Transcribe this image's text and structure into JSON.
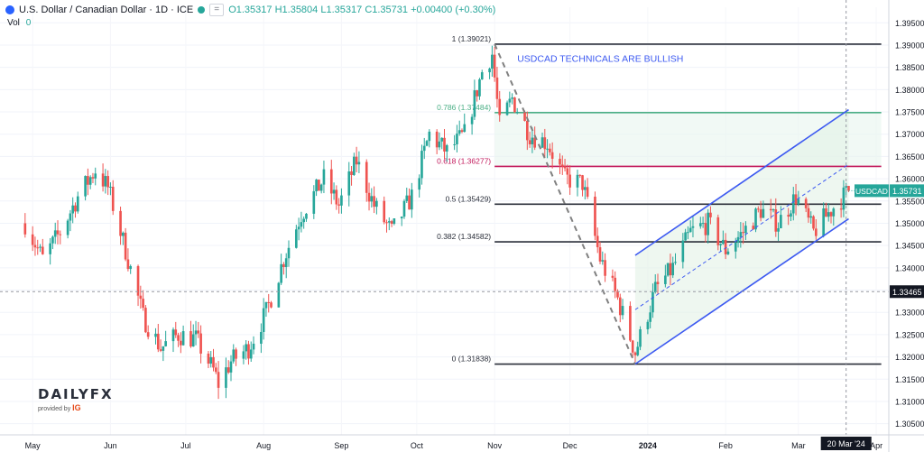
{
  "header": {
    "symbol_title": "U.S. Dollar / Canadian Dollar · 1D · ICE",
    "open": "O1.35317",
    "high": "H1.35804",
    "low": "L1.35317",
    "close": "C1.35731",
    "change": "+0.00400 (+0.30%)",
    "vol_label": "Vol",
    "vol_value": "0"
  },
  "logo": {
    "brand": "DAILYFX",
    "sub": "provided by",
    "ig": "IG"
  },
  "colors": {
    "up": "#26a69a",
    "down": "#ef5350",
    "channel": "#3d5af1",
    "fib_786": "#4caf86",
    "fib_618": "#c2185b",
    "fib_neutral": "#2a2e39",
    "annotation": "#3d5af1",
    "last_price_bg": "#26a69a",
    "crosshair_bg": "#131722"
  },
  "chart_data": {
    "type": "candlestick",
    "title": "",
    "annotation": "USDCAD TECHNICALS ARE BULLISH",
    "ylim": [
      1.3025,
      1.3985
    ],
    "y_ticks": [
      "1.39500",
      "1.39000",
      "1.38500",
      "1.38000",
      "1.37500",
      "1.37000",
      "1.36500",
      "1.36000",
      "1.35500",
      "1.35000",
      "1.34500",
      "1.34000",
      "1.33500",
      "1.33000",
      "1.32500",
      "1.32000",
      "1.31500",
      "1.31000",
      "1.30500"
    ],
    "x_ticks": [
      {
        "label": "May",
        "date": "2023-05-01"
      },
      {
        "label": "Jun",
        "date": "2023-06-01"
      },
      {
        "label": "Jul",
        "date": "2023-07-01"
      },
      {
        "label": "Aug",
        "date": "2023-08-01"
      },
      {
        "label": "Sep",
        "date": "2023-09-01"
      },
      {
        "label": "Oct",
        "date": "2023-10-01"
      },
      {
        "label": "Nov",
        "date": "2023-11-01"
      },
      {
        "label": "Dec",
        "date": "2023-12-01"
      },
      {
        "label": "2024",
        "date": "2024-01-01"
      },
      {
        "label": "Feb",
        "date": "2024-02-01"
      },
      {
        "label": "Mar",
        "date": "2024-03-01"
      },
      {
        "label": "Apr",
        "date": "2024-04-01"
      }
    ],
    "crosshair_date": "20 Mar '24",
    "crosshair_price": "1.33465",
    "last_price": {
      "symbol": "USDCAD",
      "value": "1.35731"
    },
    "fib_levels": [
      {
        "label": "1 (1.39021)",
        "value": 1.39021
      },
      {
        "label": "0.786 (1.37484)",
        "value": 1.37484
      },
      {
        "label": "0.618 (1.36277)",
        "value": 1.36277
      },
      {
        "label": "0.5 (1.35429)",
        "value": 1.35429
      },
      {
        "label": "0.382 (1.34582)",
        "value": 1.34582
      },
      {
        "label": "0 (1.31838)",
        "value": 1.31838
      }
    ],
    "trend_line": {
      "from": {
        "date": "2023-11-01",
        "value": 1.39021
      },
      "to": {
        "date": "2023-12-27",
        "value": 1.31838
      }
    },
    "channel": {
      "upper": {
        "from": {
          "date": "2023-12-27",
          "value": 1.3428
        },
        "to": {
          "date": "2024-03-21",
          "value": 1.3755
        }
      },
      "lower": {
        "from": {
          "date": "2023-12-27",
          "value": 1.3184
        },
        "to": {
          "date": "2024-03-21",
          "value": 1.351
        }
      }
    },
    "anchors": [
      [
        "2023-04-28",
        1.35
      ],
      [
        "2023-05-05",
        1.342
      ],
      [
        "2023-05-12",
        1.348
      ],
      [
        "2023-05-19",
        1.356
      ],
      [
        "2023-05-26",
        1.362
      ],
      [
        "2023-05-31",
        1.358
      ],
      [
        "2023-06-07",
        1.344
      ],
      [
        "2023-06-14",
        1.329
      ],
      [
        "2023-06-21",
        1.322
      ],
      [
        "2023-06-28",
        1.325
      ],
      [
        "2023-07-05",
        1.324
      ],
      [
        "2023-07-12",
        1.317
      ],
      [
        "2023-07-14",
        1.314
      ],
      [
        "2023-07-19",
        1.319
      ],
      [
        "2023-07-26",
        1.322
      ],
      [
        "2023-08-02",
        1.33
      ],
      [
        "2023-08-09",
        1.342
      ],
      [
        "2023-08-16",
        1.352
      ],
      [
        "2023-08-25",
        1.36
      ],
      [
        "2023-08-31",
        1.354
      ],
      [
        "2023-09-07",
        1.364
      ],
      [
        "2023-09-14",
        1.354
      ],
      [
        "2023-09-21",
        1.348
      ],
      [
        "2023-09-29",
        1.356
      ],
      [
        "2023-10-06",
        1.37
      ],
      [
        "2023-10-13",
        1.366
      ],
      [
        "2023-10-20",
        1.37
      ],
      [
        "2023-10-27",
        1.384
      ],
      [
        "2023-10-31",
        1.388
      ],
      [
        "2023-11-03",
        1.372
      ],
      [
        "2023-11-08",
        1.378
      ],
      [
        "2023-11-15",
        1.37
      ],
      [
        "2023-11-22",
        1.368
      ],
      [
        "2023-11-29",
        1.36
      ],
      [
        "2023-12-06",
        1.359
      ],
      [
        "2023-12-13",
        1.342
      ],
      [
        "2023-12-20",
        1.333
      ],
      [
        "2023-12-27",
        1.321
      ],
      [
        "2024-01-04",
        1.335
      ],
      [
        "2024-01-11",
        1.34
      ],
      [
        "2024-01-18",
        1.348
      ],
      [
        "2024-01-25",
        1.35
      ],
      [
        "2024-02-01",
        1.344
      ],
      [
        "2024-02-08",
        1.348
      ],
      [
        "2024-02-15",
        1.353
      ],
      [
        "2024-02-22",
        1.35
      ],
      [
        "2024-02-29",
        1.356
      ],
      [
        "2024-03-07",
        1.348
      ],
      [
        "2024-03-14",
        1.353
      ],
      [
        "2024-03-21",
        1.3573
      ]
    ]
  }
}
